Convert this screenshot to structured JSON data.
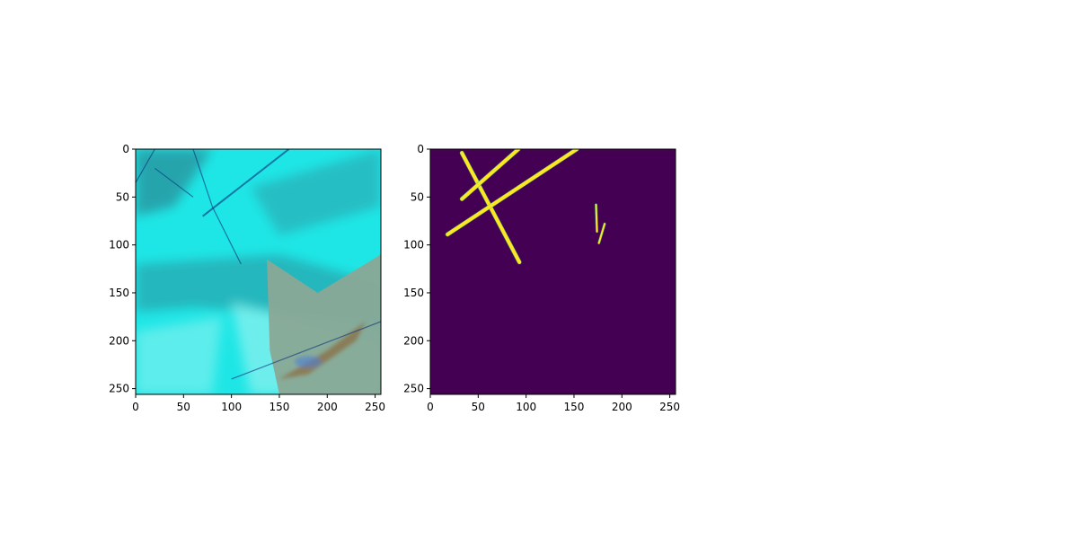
{
  "colors": {
    "background": "#ffffff",
    "axis": "#000000",
    "mask_background": "#440154",
    "mask_foreground": "#fde725",
    "mask_edge": "#35b779",
    "image_cyan": "#1fe6e6",
    "image_light_cyan": "#8ff2f0",
    "image_dark_blue": "#0b2f7a",
    "image_teal_shadow": "#2a8f9a",
    "image_olive_region": "#8aa896",
    "image_brown_streak": "#8a6a3a"
  },
  "chart_data": [
    {
      "type": "heatmap",
      "content": "rgb-image",
      "title": "",
      "xlabel": "",
      "ylabel": "",
      "xlim": [
        0,
        256
      ],
      "ylim": [
        256,
        0
      ],
      "xticks": [
        0,
        50,
        100,
        150,
        200,
        250
      ],
      "yticks": [
        0,
        50,
        100,
        150,
        200,
        250
      ],
      "grid": false,
      "legend": "none"
    },
    {
      "type": "heatmap",
      "content": "binary-mask",
      "title": "",
      "xlabel": "",
      "ylabel": "",
      "xlim": [
        0,
        256
      ],
      "ylim": [
        256,
        0
      ],
      "xticks": [
        0,
        50,
        100,
        150,
        200,
        250
      ],
      "yticks": [
        0,
        50,
        100,
        150,
        200,
        250
      ],
      "grid": false,
      "legend": "none",
      "value_range": [
        0,
        1
      ],
      "mask_lines": [
        {
          "x": [
            33,
            93
          ],
          "y": [
            4,
            118
          ]
        },
        {
          "x": [
            18,
            153
          ],
          "y": [
            89,
            0
          ]
        },
        {
          "x": [
            33,
            92
          ],
          "y": [
            52,
            0
          ]
        },
        {
          "x": [
            173,
            174
          ],
          "y": [
            58,
            86
          ]
        },
        {
          "x": [
            176,
            182
          ],
          "y": [
            98,
            78
          ]
        }
      ]
    }
  ]
}
